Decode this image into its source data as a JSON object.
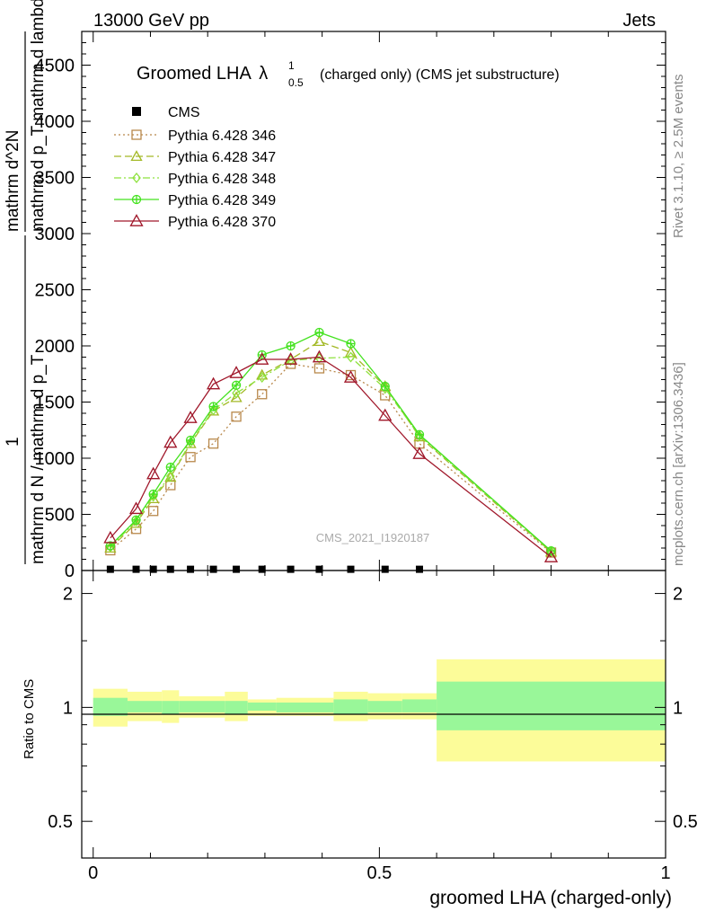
{
  "header": {
    "left": "13000 GeV pp",
    "right": "Jets"
  },
  "side_labels": {
    "rivet": "Rivet 3.1.10, ≥ 2.5M events",
    "mcplots": "mcplots.cern.ch [arXiv:1306.3436]"
  },
  "chart_data": {
    "type": "line",
    "title": "Groomed LHA",
    "title_symbol": "λ",
    "title_sup": "1",
    "title_sub": "0.5",
    "title_suffix": "(charged only) (CMS jet substructure)",
    "watermark": "CMS_2021_I1920187",
    "xlabel": "groomed LHA (charged-only)",
    "ylabel_upper_num": "mathrm d^2N",
    "ylabel_upper_den": "mathrm d p_T mathrm d lambda",
    "ylabel_lower_num": "1",
    "ylabel_lower_den": "mathrm d N / mathrm d p_T",
    "xlim": [
      -0.02,
      1.0
    ],
    "ylim": [
      0,
      4800
    ],
    "x_ticks": [
      0,
      0.5,
      1
    ],
    "x_tick_labels": [
      "0",
      "0.5",
      "1"
    ],
    "y_ticks": [
      0,
      500,
      1000,
      1500,
      2000,
      2500,
      3000,
      3500,
      4000,
      4500
    ],
    "y_tick_labels": [
      "0",
      "500",
      "1000",
      "1500",
      "2000",
      "2500",
      "3000",
      "3500",
      "4000",
      "4500"
    ],
    "legend_position": "top-left",
    "data_name": "CMS",
    "data_points": {
      "x": [
        0.03,
        0.075,
        0.105,
        0.135,
        0.17,
        0.21,
        0.25,
        0.295,
        0.345,
        0.395,
        0.45,
        0.51,
        0.57
      ],
      "y": [
        3,
        3,
        3,
        3,
        3,
        3,
        3,
        3,
        3,
        3,
        3,
        3,
        3
      ]
    },
    "x": [
      0.03,
      0.075,
      0.105,
      0.135,
      0.17,
      0.21,
      0.25,
      0.295,
      0.345,
      0.395,
      0.45,
      0.51,
      0.57,
      0.8
    ],
    "series": [
      {
        "name": "Pythia 6.428 346",
        "color": "#b8884b",
        "marker": "square",
        "dash": "2,3",
        "values": [
          180,
          370,
          530,
          760,
          1010,
          1130,
          1370,
          1570,
          1840,
          1800,
          1740,
          1560,
          1130,
          160
        ]
      },
      {
        "name": "Pythia 6.428 347",
        "color": "#a3b926",
        "marker": "triangle",
        "dash": "8,4",
        "values": [
          200,
          420,
          640,
          830,
          1130,
          1420,
          1540,
          1740,
          1880,
          2040,
          1940,
          1640,
          1190,
          165
        ]
      },
      {
        "name": "Pythia 6.428 348",
        "color": "#8ee23e",
        "marker": "diamond",
        "dash": "8,3,2,3",
        "values": [
          210,
          440,
          660,
          840,
          1140,
          1430,
          1580,
          1720,
          1870,
          1890,
          1900,
          1620,
          1200,
          170
        ]
      },
      {
        "name": "Pythia 6.428 349",
        "color": "#43e21e",
        "marker": "cross",
        "dash": "",
        "values": [
          220,
          450,
          680,
          920,
          1160,
          1460,
          1650,
          1920,
          2000,
          2120,
          2020,
          1640,
          1210,
          175
        ]
      },
      {
        "name": "Pythia 6.428 370",
        "color": "#a0172a",
        "marker": "triangle-open",
        "dash": "",
        "values": [
          290,
          550,
          860,
          1140,
          1360,
          1660,
          1760,
          1880,
          1880,
          1900,
          1720,
          1380,
          1040,
          120
        ]
      }
    ],
    "ratio": {
      "ylabel": "Ratio to CMS",
      "ylim": [
        0.4,
        2.3
      ],
      "log": true,
      "y_ticks": [
        0.5,
        1,
        2
      ],
      "y_tick_labels": [
        "0.5",
        "1",
        "2"
      ],
      "bands": [
        {
          "x0": 0.0,
          "x1": 0.06,
          "g": [
            0.95,
            1.06
          ],
          "y": [
            0.89,
            1.12
          ]
        },
        {
          "x0": 0.06,
          "x1": 0.12,
          "g": [
            0.97,
            1.04
          ],
          "y": [
            0.92,
            1.1
          ]
        },
        {
          "x0": 0.12,
          "x1": 0.15,
          "g": [
            0.96,
            1.04
          ],
          "y": [
            0.91,
            1.11
          ]
        },
        {
          "x0": 0.15,
          "x1": 0.23,
          "g": [
            0.97,
            1.04
          ],
          "y": [
            0.94,
            1.07
          ]
        },
        {
          "x0": 0.23,
          "x1": 0.27,
          "g": [
            0.96,
            1.04
          ],
          "y": [
            0.92,
            1.1
          ]
        },
        {
          "x0": 0.27,
          "x1": 0.32,
          "g": [
            0.98,
            1.03
          ],
          "y": [
            0.95,
            1.05
          ]
        },
        {
          "x0": 0.32,
          "x1": 0.42,
          "g": [
            0.97,
            1.03
          ],
          "y": [
            0.95,
            1.06
          ]
        },
        {
          "x0": 0.42,
          "x1": 0.48,
          "g": [
            0.96,
            1.05
          ],
          "y": [
            0.92,
            1.1
          ]
        },
        {
          "x0": 0.48,
          "x1": 0.54,
          "g": [
            0.97,
            1.04
          ],
          "y": [
            0.93,
            1.09
          ]
        },
        {
          "x0": 0.54,
          "x1": 0.6,
          "g": [
            0.97,
            1.05
          ],
          "y": [
            0.93,
            1.09
          ]
        },
        {
          "x0": 0.6,
          "x1": 1.0,
          "g": [
            0.87,
            1.17
          ],
          "y": [
            0.72,
            1.34
          ]
        }
      ],
      "green": "#99f799",
      "yellow": "#fcfc99"
    }
  }
}
